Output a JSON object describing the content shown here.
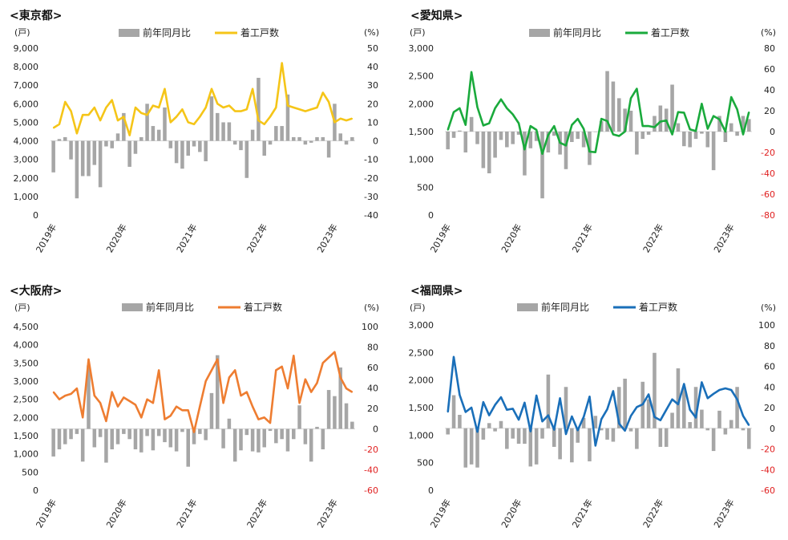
{
  "legend": {
    "bar": "前年同月比",
    "line": "着工戸数"
  },
  "units": {
    "left": "(戸)",
    "right": "(%)"
  },
  "x_ticks": [
    "2019年",
    "2020年",
    "2021年",
    "2022年",
    "2023年"
  ],
  "chart_data": [
    {
      "id": "tokyo",
      "title": "<東京都>",
      "type": "bar+line",
      "line_color": "#F5C518",
      "right_tick_color": "#222222",
      "categories_start": "2019-01",
      "categories_end": "2023-04",
      "left_ticks": [
        "0",
        "1,000",
        "2,000",
        "3,000",
        "4,000",
        "5,000",
        "6,000",
        "7,000",
        "8,000",
        "9,000"
      ],
      "right_ticks": [
        "-40",
        "-30",
        "-20",
        "-10",
        "0",
        "10",
        "20",
        "30",
        "40",
        "50"
      ],
      "left_range": [
        0,
        9000
      ],
      "right_range": [
        -40,
        50
      ],
      "series": [
        {
          "name": "着工戸数",
          "kind": "line",
          "axis": "left",
          "values": [
            4700,
            4900,
            6100,
            5600,
            4400,
            5400,
            5400,
            5800,
            5100,
            5800,
            6200,
            5100,
            5300,
            4300,
            5800,
            5500,
            5400,
            5900,
            5800,
            6800,
            5000,
            5300,
            5700,
            5000,
            4900,
            5300,
            5800,
            6800,
            6000,
            5800,
            5900,
            5600,
            5600,
            5700,
            6800,
            5100,
            4900,
            5300,
            5800,
            8200,
            5900,
            5800,
            5700,
            5600,
            5700,
            5800,
            6600,
            6100,
            5000,
            5200,
            5100,
            5200
          ]
        },
        {
          "name": "前年同月比",
          "kind": "bar",
          "axis": "right",
          "values": [
            -17,
            1,
            2,
            -10,
            -31,
            -19,
            -19,
            -13,
            -25,
            -3,
            -4,
            4,
            15,
            -14,
            -7,
            2,
            20,
            8,
            6,
            18,
            -4,
            -12,
            -15,
            -8,
            -3,
            -6,
            -11,
            24,
            15,
            10,
            10,
            -2,
            -5,
            -20,
            6,
            34,
            -8,
            -2,
            8,
            8,
            25,
            2,
            2,
            -2,
            -1,
            2,
            2,
            -9,
            20,
            4,
            -2,
            2
          ]
        }
      ]
    },
    {
      "id": "aichi",
      "title": "<愛知県>",
      "type": "bar+line",
      "line_color": "#1AAA3C",
      "right_tick_color": "#E02020",
      "categories_start": "2019-01",
      "categories_end": "2023-04",
      "left_ticks": [
        "0",
        "500",
        "1,000",
        "1,500",
        "2,000",
        "2,500",
        "3,000"
      ],
      "right_ticks": [
        "-80",
        "-60",
        "-40",
        "-20",
        "0",
        "20",
        "40",
        "60",
        "80"
      ],
      "left_range": [
        0,
        3000
      ],
      "right_range": [
        -80,
        80
      ],
      "series": [
        {
          "name": "着工戸数",
          "kind": "line",
          "axis": "left",
          "values": [
            1530,
            1850,
            1920,
            1620,
            2570,
            1940,
            1610,
            1650,
            1920,
            2080,
            1920,
            1810,
            1650,
            1180,
            1600,
            1530,
            1100,
            1440,
            1600,
            1300,
            1250,
            1620,
            1730,
            1550,
            1140,
            1130,
            1730,
            1690,
            1450,
            1420,
            1500,
            2100,
            2270,
            1600,
            1600,
            1580,
            1680,
            1700,
            1450,
            1850,
            1840,
            1540,
            1510,
            2000,
            1550,
            1780,
            1720,
            1500,
            2120,
            1900,
            1450,
            1850
          ]
        },
        {
          "name": "前年同月比",
          "kind": "bar",
          "axis": "right",
          "values": [
            -17,
            -6,
            1,
            -20,
            14,
            -12,
            -35,
            -40,
            -25,
            -8,
            -15,
            -12,
            -3,
            -42,
            -16,
            -9,
            -64,
            -20,
            -4,
            -22,
            -36,
            -10,
            -7,
            -15,
            -32,
            0,
            10,
            58,
            48,
            32,
            22,
            20,
            -22,
            -7,
            -3,
            15,
            25,
            22,
            45,
            8,
            -14,
            -15,
            -7,
            -2,
            -15,
            -37,
            15,
            -10,
            8,
            -4,
            15,
            12
          ]
        }
      ]
    },
    {
      "id": "osaka",
      "title": "<大阪府>",
      "type": "bar+line",
      "line_color": "#EE7D31",
      "right_tick_color": "#E02020",
      "categories_start": "2019-01",
      "categories_end": "2023-04",
      "left_ticks": [
        "0",
        "500",
        "1,000",
        "1,500",
        "2,000",
        "2,500",
        "3,000",
        "3,500",
        "4,000",
        "4,500"
      ],
      "right_ticks": [
        "-60",
        "-40",
        "-20",
        "0",
        "20",
        "40",
        "60",
        "80",
        "100"
      ],
      "left_range": [
        0,
        4500
      ],
      "right_range": [
        -60,
        100
      ],
      "series": [
        {
          "name": "着工戸数",
          "kind": "line",
          "axis": "left",
          "values": [
            2700,
            2500,
            2600,
            2650,
            2800,
            2000,
            3600,
            2600,
            2400,
            1900,
            2700,
            2300,
            2550,
            2450,
            2350,
            2000,
            2500,
            2400,
            3300,
            1950,
            2050,
            2300,
            2200,
            2200,
            1600,
            2300,
            3000,
            3300,
            3600,
            2400,
            3100,
            3300,
            2600,
            2700,
            2300,
            1950,
            2000,
            1850,
            3300,
            3400,
            2800,
            3700,
            2400,
            3050,
            2700,
            2950,
            3500,
            3650,
            3800,
            3100,
            2800,
            2700
          ]
        },
        {
          "name": "前年同月比",
          "kind": "bar",
          "axis": "right",
          "values": [
            -27,
            -20,
            -15,
            -10,
            -5,
            -32,
            62,
            -18,
            -8,
            -33,
            -20,
            -15,
            -5,
            -10,
            -20,
            -23,
            -7,
            -21,
            -7,
            -13,
            -18,
            -22,
            -3,
            -37,
            -15,
            -5,
            -11,
            35,
            72,
            -19,
            10,
            -32,
            -21,
            -6,
            -22,
            -23,
            -18,
            -2,
            -14,
            -10,
            -22,
            -10,
            23,
            -15,
            -32,
            2,
            -20,
            38,
            32,
            60,
            25,
            7
          ]
        }
      ]
    },
    {
      "id": "fukuoka",
      "title": "<福岡県>",
      "type": "bar+line",
      "line_color": "#1A6FB9",
      "right_tick_color": "#E02020",
      "categories_start": "2019-01",
      "categories_end": "2023-04",
      "left_ticks": [
        "0",
        "500",
        "1,000",
        "1,500",
        "2,000",
        "2,500",
        "3,000"
      ],
      "right_ticks": [
        "-60",
        "-40",
        "-20",
        "0",
        "20",
        "40",
        "60",
        "80",
        "100"
      ],
      "left_range": [
        0,
        3000
      ],
      "right_range": [
        -60,
        100
      ],
      "series": [
        {
          "name": "着工戸数",
          "kind": "line",
          "axis": "left",
          "values": [
            1420,
            2420,
            1730,
            1420,
            1500,
            1060,
            1600,
            1360,
            1550,
            1690,
            1460,
            1480,
            1280,
            1590,
            1070,
            1720,
            1250,
            1360,
            1100,
            1670,
            1020,
            1340,
            1090,
            1330,
            1700,
            810,
            1290,
            1470,
            1800,
            1210,
            1080,
            1350,
            1510,
            1560,
            1740,
            1330,
            1270,
            1460,
            1650,
            1560,
            1930,
            1460,
            1320,
            1960,
            1670,
            1750,
            1820,
            1850,
            1820,
            1650,
            1350,
            1180
          ]
        },
        {
          "name": "前年同月比",
          "kind": "bar",
          "axis": "right",
          "values": [
            -6,
            32,
            13,
            -38,
            -35,
            -38,
            -11,
            5,
            -3,
            7,
            -20,
            -10,
            -15,
            -15,
            -37,
            -35,
            -10,
            52,
            -18,
            -30,
            40,
            -33,
            -14,
            10,
            -32,
            12,
            -2,
            -11,
            -13,
            40,
            48,
            -3,
            -20,
            45,
            28,
            73,
            -18,
            -18,
            15,
            58,
            40,
            6,
            40,
            18,
            -2,
            -22,
            17,
            -6,
            8,
            40,
            -2,
            -20
          ]
        }
      ]
    }
  ]
}
